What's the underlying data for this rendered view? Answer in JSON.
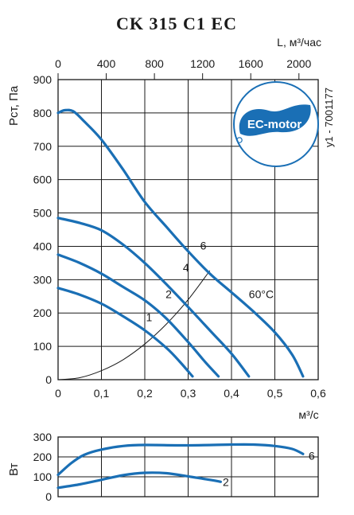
{
  "chart_data": [
    {
      "type": "line",
      "title": "CK 315 C1 EC",
      "side_label": "y1 - 7001177",
      "logo_text": "EC-motor",
      "ylabel": "Pст, Па",
      "xlabel_bottom": "м³/с",
      "xlabel_top": "L, м³/час",
      "xlim": [
        0,
        0.6
      ],
      "ylim": [
        0,
        900
      ],
      "x_ticks": [
        "0",
        "0,1",
        "0,2",
        "0,3",
        "0,4",
        "0,5",
        "0,6"
      ],
      "top_ticks": [
        "0",
        "400",
        "800",
        "1200",
        "1600",
        "2000"
      ],
      "y_ticks": [
        "0",
        "100",
        "200",
        "300",
        "400",
        "500",
        "600",
        "700",
        "800",
        "900"
      ],
      "grid": true,
      "colors": {
        "curve": "#1a6fb5",
        "system_curve": "#1a1a1a",
        "logo": "#1a6fb5"
      },
      "series": [
        {
          "name": "1",
          "label_at": [
            0.21,
            175
          ],
          "points": [
            [
              0,
              275
            ],
            [
              0.05,
              255
            ],
            [
              0.1,
              228
            ],
            [
              0.15,
              190
            ],
            [
              0.2,
              148
            ],
            [
              0.25,
              95
            ],
            [
              0.28,
              55
            ],
            [
              0.31,
              10
            ]
          ]
        },
        {
          "name": "2",
          "label_at": [
            0.255,
            245
          ],
          "points": [
            [
              0,
              375
            ],
            [
              0.05,
              350
            ],
            [
              0.1,
              318
            ],
            [
              0.15,
              278
            ],
            [
              0.2,
              238
            ],
            [
              0.25,
              183
            ],
            [
              0.3,
              113
            ],
            [
              0.34,
              52
            ],
            [
              0.37,
              10
            ]
          ]
        },
        {
          "name": "4",
          "label_at": [
            0.295,
            325
          ],
          "points": [
            [
              0,
              485
            ],
            [
              0.05,
              470
            ],
            [
              0.1,
              448
            ],
            [
              0.15,
              405
            ],
            [
              0.2,
              350
            ],
            [
              0.25,
              286
            ],
            [
              0.3,
              218
            ],
            [
              0.35,
              148
            ],
            [
              0.4,
              78
            ],
            [
              0.44,
              10
            ]
          ]
        },
        {
          "name": "6",
          "label_at": [
            0.335,
            390
          ],
          "points": [
            [
              0,
              800
            ],
            [
              0.015,
              808
            ],
            [
              0.035,
              805
            ],
            [
              0.06,
              775
            ],
            [
              0.1,
              720
            ],
            [
              0.15,
              630
            ],
            [
              0.2,
              533
            ],
            [
              0.25,
              458
            ],
            [
              0.3,
              385
            ],
            [
              0.35,
              318
            ],
            [
              0.4,
              262
            ],
            [
              0.45,
              205
            ],
            [
              0.5,
              142
            ],
            [
              0.54,
              75
            ],
            [
              0.565,
              10
            ]
          ]
        }
      ],
      "system_curve": {
        "points": [
          [
            0,
            0
          ],
          [
            0.05,
            6
          ],
          [
            0.1,
            27
          ],
          [
            0.15,
            60
          ],
          [
            0.2,
            107
          ],
          [
            0.25,
            167
          ],
          [
            0.3,
            240
          ],
          [
            0.35,
            327
          ]
        ]
      },
      "annotations": [
        {
          "text": "60°C",
          "at": [
            0.44,
            245
          ]
        }
      ]
    },
    {
      "type": "line",
      "ylabel": "Вт",
      "xlim": [
        0,
        0.6
      ],
      "ylim": [
        0,
        300
      ],
      "y_ticks": [
        "0",
        "100",
        "200",
        "300"
      ],
      "grid": true,
      "series": [
        {
          "name": "6",
          "label_at": [
            0.585,
            207
          ],
          "points": [
            [
              0,
              110
            ],
            [
              0.03,
              168
            ],
            [
              0.06,
              210
            ],
            [
              0.1,
              237
            ],
            [
              0.15,
              255
            ],
            [
              0.2,
              260
            ],
            [
              0.3,
              258
            ],
            [
              0.4,
              262
            ],
            [
              0.45,
              262
            ],
            [
              0.5,
              255
            ],
            [
              0.54,
              240
            ],
            [
              0.565,
              215
            ]
          ]
        },
        {
          "name": "2",
          "label_at": [
            0.387,
            75
          ],
          "points": [
            [
              0,
              45
            ],
            [
              0.05,
              62
            ],
            [
              0.1,
              85
            ],
            [
              0.15,
              108
            ],
            [
              0.2,
              120
            ],
            [
              0.25,
              118
            ],
            [
              0.3,
              102
            ],
            [
              0.35,
              85
            ],
            [
              0.375,
              75
            ]
          ]
        }
      ]
    }
  ]
}
